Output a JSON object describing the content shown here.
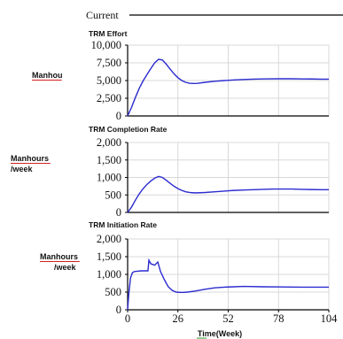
{
  "chart_data": {
    "legend": {
      "label": "Current"
    },
    "x": {
      "label": "Time(Week)",
      "ticks": [
        0,
        26,
        52,
        78,
        104
      ],
      "range": [
        0,
        104
      ]
    },
    "panels": [
      {
        "type": "line",
        "title": "TRM Effort",
        "ylabel": [
          "Manhou"
        ],
        "ylim": [
          0,
          10000
        ],
        "yticks": [
          "10,000",
          "7,500",
          "5,000",
          "2,500",
          "0"
        ],
        "ytick_values": [
          10000,
          7500,
          5000,
          2500,
          0
        ],
        "grid": true,
        "series": [
          {
            "color": "#2b2bd0",
            "x": [
              0,
              2,
              4,
              6,
              8,
              10,
              12,
              14,
              16,
              18,
              20,
              22,
              24,
              26,
              28,
              30,
              32,
              34,
              36,
              40,
              45,
              50,
              55,
              60,
              65,
              70,
              78,
              85,
              90,
              95,
              100,
              104
            ],
            "y": [
              0,
              1200,
              2600,
              3900,
              4950,
              5850,
              6700,
              7500,
              8000,
              7900,
              7300,
              6600,
              5950,
              5400,
              5000,
              4750,
              4620,
              4580,
              4600,
              4750,
              4900,
              5000,
              5080,
              5150,
              5200,
              5230,
              5250,
              5250,
              5230,
              5220,
              5200,
              5200
            ]
          }
        ]
      },
      {
        "type": "line",
        "title": "TRM Completion Rate",
        "ylabel": [
          "Manhours",
          "/week"
        ],
        "ylim": [
          0,
          2000
        ],
        "yticks": [
          "2,000",
          "1,500",
          "1,000",
          "500",
          "0"
        ],
        "ytick_values": [
          2000,
          1500,
          1000,
          500,
          0
        ],
        "grid": true,
        "series": [
          {
            "color": "#2b2bd0",
            "x": [
              0,
              2,
              4,
              6,
              8,
              10,
              12,
              14,
              16,
              18,
              20,
              22,
              24,
              26,
              28,
              30,
              32,
              34,
              36,
              40,
              45,
              50,
              55,
              60,
              65,
              70,
              75,
              80,
              85,
              90,
              95,
              100,
              104
            ],
            "y": [
              0,
              150,
              350,
              530,
              680,
              800,
              900,
              980,
              1030,
              1000,
              920,
              830,
              750,
              680,
              630,
              590,
              570,
              560,
              560,
              570,
              590,
              610,
              630,
              640,
              650,
              660,
              670,
              670,
              670,
              660,
              655,
              650,
              650
            ]
          }
        ]
      },
      {
        "type": "line",
        "title": "TRM Initiation Rate",
        "ylabel": [
          "Manhours",
          "/week"
        ],
        "ylim": [
          0,
          2000
        ],
        "yticks": [
          "2,000",
          "1,500",
          "1,000",
          "500",
          "0"
        ],
        "ytick_values": [
          2000,
          1500,
          1000,
          500,
          0
        ],
        "grid": true,
        "series": [
          {
            "color": "#2b2bd0",
            "x": [
              0,
              0.6,
              1.5,
              2.5,
              3.5,
              5,
              7,
              9,
              10.5,
              11,
              11.5,
              12,
              13,
              14,
              15,
              15.6,
              17,
              19,
              21,
              23,
              25,
              28,
              31,
              35,
              40,
              45,
              50,
              55,
              60,
              70,
              80,
              90,
              104
            ],
            "y": [
              0,
              450,
              900,
              1050,
              1080,
              1090,
              1100,
              1100,
              1100,
              1400,
              1350,
              1300,
              1280,
              1260,
              1320,
              1350,
              1080,
              850,
              650,
              550,
              500,
              490,
              500,
              530,
              580,
              620,
              640,
              650,
              660,
              650,
              645,
              640,
              640
            ]
          }
        ]
      }
    ]
  }
}
